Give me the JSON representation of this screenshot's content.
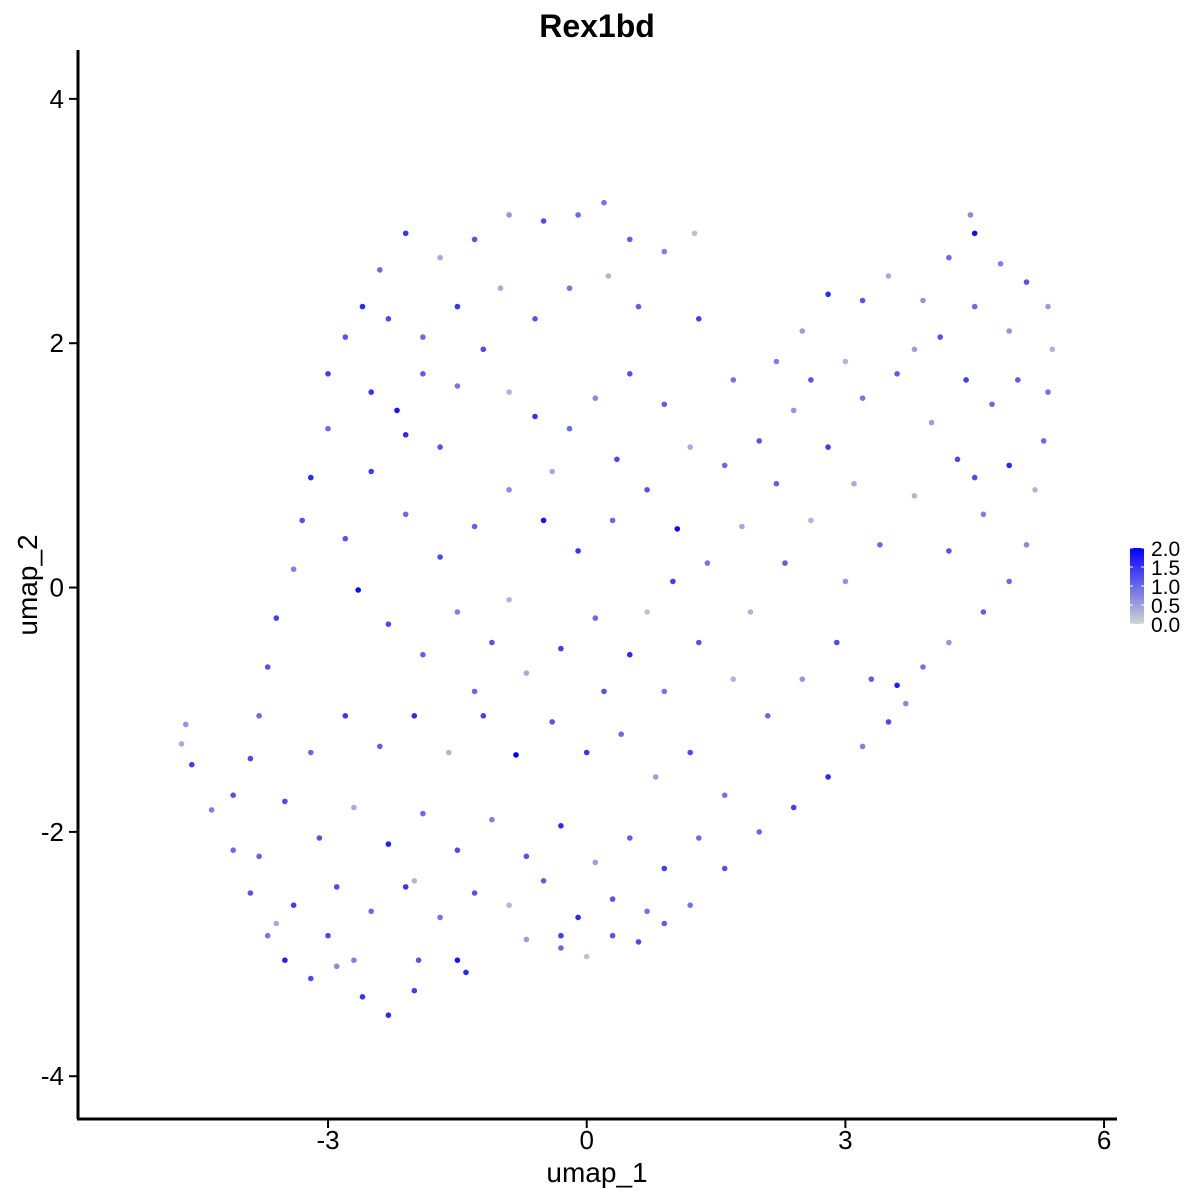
{
  "chart_data": {
    "type": "scatter",
    "title": "Rex1bd",
    "xlabel": "umap_1",
    "ylabel": "umap_2",
    "xlim": [
      -5.9,
      6.15
    ],
    "ylim": [
      -4.35,
      4.4
    ],
    "x_ticks": [
      -3,
      0,
      3,
      6
    ],
    "y_ticks": [
      -4,
      -2,
      0,
      2,
      4
    ],
    "x_tick_labels": [
      "-3",
      "0",
      "3",
      "6"
    ],
    "y_tick_labels": [
      "-4",
      "-2",
      "0",
      "2",
      "4"
    ],
    "grid": false,
    "legend": {
      "position": "right",
      "type": "colorbar",
      "range": [
        0,
        2
      ],
      "breaks": [
        2.0,
        1.5,
        1.0,
        0.5,
        0.0
      ],
      "labels": [
        "2.0",
        "1.5",
        "1.0",
        "0.5",
        "0.0"
      ],
      "low_color": "#d3d3d3",
      "high_color": "#0000ff"
    },
    "point_color_scale": {
      "low": "#d3d3d3",
      "high": "#0000ff"
    },
    "points": [
      {
        "x": -4.65,
        "y": -1.12,
        "v": 0.6
      },
      {
        "x": -4.58,
        "y": -1.45,
        "v": 1.4
      },
      {
        "x": -4.7,
        "y": -1.28,
        "v": 0.4
      },
      {
        "x": -4.35,
        "y": -1.82,
        "v": 0.8
      },
      {
        "x": -4.1,
        "y": -2.15,
        "v": 1.0
      },
      {
        "x": -3.9,
        "y": -2.5,
        "v": 1.2
      },
      {
        "x": -3.7,
        "y": -2.85,
        "v": 0.9
      },
      {
        "x": -3.5,
        "y": -3.05,
        "v": 1.7
      },
      {
        "x": -3.2,
        "y": -3.2,
        "v": 1.3
      },
      {
        "x": -2.9,
        "y": -3.1,
        "v": 0.7
      },
      {
        "x": -2.6,
        "y": -3.35,
        "v": 1.5
      },
      {
        "x": -2.3,
        "y": -3.5,
        "v": 1.6
      },
      {
        "x": -2.0,
        "y": -3.3,
        "v": 1.4
      },
      {
        "x": -1.4,
        "y": -3.15,
        "v": 1.6
      },
      {
        "x": -1.5,
        "y": -3.05,
        "v": 1.8
      },
      {
        "x": -0.7,
        "y": -2.88,
        "v": 0.5
      },
      {
        "x": -0.3,
        "y": -2.95,
        "v": 1.0
      },
      {
        "x": 0.0,
        "y": -3.02,
        "v": 0.2
      },
      {
        "x": 0.3,
        "y": -2.85,
        "v": 1.2
      },
      {
        "x": 0.6,
        "y": -2.9,
        "v": 1.3
      },
      {
        "x": 0.9,
        "y": -2.75,
        "v": 1.1
      },
      {
        "x": 1.2,
        "y": -2.6,
        "v": 0.9
      },
      {
        "x": 1.6,
        "y": -2.3,
        "v": 1.2
      },
      {
        "x": 2.0,
        "y": -2.0,
        "v": 1.0
      },
      {
        "x": 2.4,
        "y": -1.8,
        "v": 1.4
      },
      {
        "x": 2.8,
        "y": -1.55,
        "v": 1.6
      },
      {
        "x": 3.2,
        "y": -1.3,
        "v": 0.8
      },
      {
        "x": 3.5,
        "y": -1.1,
        "v": 1.3
      },
      {
        "x": 3.6,
        "y": -0.8,
        "v": 1.7
      },
      {
        "x": 3.9,
        "y": -0.65,
        "v": 0.9
      },
      {
        "x": 4.2,
        "y": -0.45,
        "v": 0.6
      },
      {
        "x": 4.6,
        "y": -0.2,
        "v": 1.1
      },
      {
        "x": 4.9,
        "y": 0.05,
        "v": 1.0
      },
      {
        "x": 5.1,
        "y": 0.35,
        "v": 0.7
      },
      {
        "x": 5.2,
        "y": 0.8,
        "v": 0.3
      },
      {
        "x": 5.3,
        "y": 1.2,
        "v": 1.0
      },
      {
        "x": 5.35,
        "y": 1.6,
        "v": 0.9
      },
      {
        "x": 5.4,
        "y": 1.95,
        "v": 0.3
      },
      {
        "x": 5.35,
        "y": 2.3,
        "v": 0.5
      },
      {
        "x": 5.1,
        "y": 2.5,
        "v": 1.2
      },
      {
        "x": 4.8,
        "y": 2.65,
        "v": 0.8
      },
      {
        "x": 4.5,
        "y": 2.9,
        "v": 1.9
      },
      {
        "x": 4.45,
        "y": 3.05,
        "v": 0.7
      },
      {
        "x": 4.2,
        "y": 2.7,
        "v": 1.0
      },
      {
        "x": 3.9,
        "y": 2.35,
        "v": 0.6
      },
      {
        "x": 3.5,
        "y": 2.55,
        "v": 0.4
      },
      {
        "x": 3.2,
        "y": 2.35,
        "v": 1.2
      },
      {
        "x": 2.8,
        "y": 2.4,
        "v": 1.6
      },
      {
        "x": 2.5,
        "y": 2.1,
        "v": 0.5
      },
      {
        "x": 2.2,
        "y": 1.85,
        "v": 0.8
      },
      {
        "x": 1.7,
        "y": 1.7,
        "v": 0.9
      },
      {
        "x": 1.3,
        "y": 2.2,
        "v": 1.4
      },
      {
        "x": 1.25,
        "y": 2.9,
        "v": 0.2
      },
      {
        "x": 0.9,
        "y": 2.75,
        "v": 0.8
      },
      {
        "x": 0.5,
        "y": 2.85,
        "v": 1.1
      },
      {
        "x": 0.2,
        "y": 3.15,
        "v": 0.9
      },
      {
        "x": -0.1,
        "y": 3.05,
        "v": 1.0
      },
      {
        "x": -0.5,
        "y": 3.0,
        "v": 1.3
      },
      {
        "x": -0.9,
        "y": 3.05,
        "v": 0.6
      },
      {
        "x": -1.3,
        "y": 2.85,
        "v": 1.2
      },
      {
        "x": -1.7,
        "y": 2.7,
        "v": 0.4
      },
      {
        "x": -2.1,
        "y": 2.9,
        "v": 1.5
      },
      {
        "x": -2.4,
        "y": 2.6,
        "v": 1.0
      },
      {
        "x": -2.6,
        "y": 2.3,
        "v": 1.6
      },
      {
        "x": -2.8,
        "y": 2.05,
        "v": 1.2
      },
      {
        "x": -3.0,
        "y": 1.75,
        "v": 1.4
      },
      {
        "x": -3.0,
        "y": 1.3,
        "v": 1.0
      },
      {
        "x": -3.2,
        "y": 0.9,
        "v": 1.6
      },
      {
        "x": -3.3,
        "y": 0.55,
        "v": 1.2
      },
      {
        "x": -3.4,
        "y": 0.15,
        "v": 0.8
      },
      {
        "x": -3.6,
        "y": -0.25,
        "v": 1.4
      },
      {
        "x": -3.7,
        "y": -0.65,
        "v": 1.2
      },
      {
        "x": -3.8,
        "y": -1.05,
        "v": 1.0
      },
      {
        "x": -3.9,
        "y": -1.4,
        "v": 1.3
      },
      {
        "x": -4.1,
        "y": -1.7,
        "v": 1.2
      },
      {
        "x": -2.5,
        "y": 1.6,
        "v": 1.5
      },
      {
        "x": -2.2,
        "y": 1.45,
        "v": 1.8
      },
      {
        "x": -1.9,
        "y": 1.75,
        "v": 1.1
      },
      {
        "x": -1.5,
        "y": 1.65,
        "v": 0.9
      },
      {
        "x": -1.2,
        "y": 1.95,
        "v": 1.3
      },
      {
        "x": -0.9,
        "y": 1.6,
        "v": 0.3
      },
      {
        "x": -0.6,
        "y": 1.4,
        "v": 1.5
      },
      {
        "x": -0.2,
        "y": 1.3,
        "v": 1.0
      },
      {
        "x": 0.1,
        "y": 1.55,
        "v": 0.7
      },
      {
        "x": 0.5,
        "y": 1.75,
        "v": 1.2
      },
      {
        "x": 0.9,
        "y": 1.5,
        "v": 1.1
      },
      {
        "x": 1.2,
        "y": 1.15,
        "v": 0.4
      },
      {
        "x": 1.6,
        "y": 1.0,
        "v": 1.0
      },
      {
        "x": 2.0,
        "y": 1.2,
        "v": 1.2
      },
      {
        "x": 2.4,
        "y": 1.45,
        "v": 0.6
      },
      {
        "x": 2.8,
        "y": 1.15,
        "v": 1.4
      },
      {
        "x": 3.2,
        "y": 1.55,
        "v": 0.9
      },
      {
        "x": 3.6,
        "y": 1.75,
        "v": 1.1
      },
      {
        "x": 4.0,
        "y": 1.35,
        "v": 0.5
      },
      {
        "x": 4.3,
        "y": 1.05,
        "v": 1.3
      },
      {
        "x": 4.7,
        "y": 1.5,
        "v": 1.0
      },
      {
        "x": 4.9,
        "y": 1.0,
        "v": 1.6
      },
      {
        "x": 4.6,
        "y": 0.6,
        "v": 0.8
      },
      {
        "x": 4.2,
        "y": 0.3,
        "v": 1.2
      },
      {
        "x": 3.8,
        "y": 0.75,
        "v": 0.3
      },
      {
        "x": 3.4,
        "y": 0.35,
        "v": 1.0
      },
      {
        "x": 3.0,
        "y": 0.05,
        "v": 0.6
      },
      {
        "x": 2.6,
        "y": 0.55,
        "v": 0.3
      },
      {
        "x": 2.2,
        "y": 0.85,
        "v": 1.1
      },
      {
        "x": 1.8,
        "y": 0.5,
        "v": 0.4
      },
      {
        "x": 1.4,
        "y": 0.2,
        "v": 0.9
      },
      {
        "x": 1.05,
        "y": 0.48,
        "v": 1.9
      },
      {
        "x": 0.7,
        "y": 0.8,
        "v": 1.2
      },
      {
        "x": 0.3,
        "y": 0.55,
        "v": 1.0
      },
      {
        "x": -0.1,
        "y": 0.3,
        "v": 1.5
      },
      {
        "x": -0.5,
        "y": 0.55,
        "v": 1.8
      },
      {
        "x": -0.9,
        "y": 0.8,
        "v": 0.7
      },
      {
        "x": -1.3,
        "y": 0.5,
        "v": 1.1
      },
      {
        "x": -1.7,
        "y": 0.25,
        "v": 1.3
      },
      {
        "x": -2.1,
        "y": 0.6,
        "v": 1.0
      },
      {
        "x": -2.5,
        "y": 0.95,
        "v": 1.4
      },
      {
        "x": -2.8,
        "y": 0.4,
        "v": 1.2
      },
      {
        "x": -2.65,
        "y": -0.02,
        "v": 1.9
      },
      {
        "x": -2.3,
        "y": -0.3,
        "v": 1.3
      },
      {
        "x": -1.9,
        "y": -0.55,
        "v": 1.1
      },
      {
        "x": -1.5,
        "y": -0.2,
        "v": 0.8
      },
      {
        "x": -1.1,
        "y": -0.45,
        "v": 1.2
      },
      {
        "x": -0.7,
        "y": -0.7,
        "v": 0.4
      },
      {
        "x": -0.3,
        "y": -0.5,
        "v": 1.4
      },
      {
        "x": 0.1,
        "y": -0.25,
        "v": 1.0
      },
      {
        "x": 0.5,
        "y": -0.55,
        "v": 1.6
      },
      {
        "x": 0.9,
        "y": -0.85,
        "v": 0.9
      },
      {
        "x": 1.3,
        "y": -0.45,
        "v": 1.2
      },
      {
        "x": 1.7,
        "y": -0.75,
        "v": 0.3
      },
      {
        "x": 2.1,
        "y": -1.05,
        "v": 1.0
      },
      {
        "x": 2.5,
        "y": -0.75,
        "v": 0.6
      },
      {
        "x": 2.9,
        "y": -0.45,
        "v": 1.3
      },
      {
        "x": 3.3,
        "y": -0.75,
        "v": 1.1
      },
      {
        "x": 3.7,
        "y": -0.95,
        "v": 0.7
      },
      {
        "x": -0.82,
        "y": -1.37,
        "v": 2.0
      },
      {
        "x": -0.4,
        "y": -1.1,
        "v": 1.2
      },
      {
        "x": 0.0,
        "y": -1.35,
        "v": 1.5
      },
      {
        "x": 0.4,
        "y": -1.2,
        "v": 1.0
      },
      {
        "x": 0.8,
        "y": -1.55,
        "v": 0.5
      },
      {
        "x": 1.2,
        "y": -1.35,
        "v": 1.3
      },
      {
        "x": 1.6,
        "y": -1.7,
        "v": 0.9
      },
      {
        "x": -1.2,
        "y": -1.05,
        "v": 1.4
      },
      {
        "x": -1.6,
        "y": -1.35,
        "v": 0.3
      },
      {
        "x": -2.0,
        "y": -1.05,
        "v": 1.6
      },
      {
        "x": -2.4,
        "y": -1.3,
        "v": 1.1
      },
      {
        "x": -2.8,
        "y": -1.05,
        "v": 1.5
      },
      {
        "x": -3.2,
        "y": -1.35,
        "v": 1.0
      },
      {
        "x": -3.5,
        "y": -1.75,
        "v": 1.3
      },
      {
        "x": -3.1,
        "y": -2.05,
        "v": 1.2
      },
      {
        "x": -2.7,
        "y": -1.8,
        "v": 0.4
      },
      {
        "x": -2.3,
        "y": -2.1,
        "v": 1.7
      },
      {
        "x": -1.9,
        "y": -1.85,
        "v": 1.0
      },
      {
        "x": -1.5,
        "y": -2.15,
        "v": 1.3
      },
      {
        "x": -1.1,
        "y": -1.9,
        "v": 0.8
      },
      {
        "x": -0.7,
        "y": -2.2,
        "v": 1.2
      },
      {
        "x": -0.3,
        "y": -1.95,
        "v": 1.6
      },
      {
        "x": 0.1,
        "y": -2.25,
        "v": 0.5
      },
      {
        "x": 0.5,
        "y": -2.05,
        "v": 1.1
      },
      {
        "x": 0.9,
        "y": -2.3,
        "v": 1.4
      },
      {
        "x": 1.3,
        "y": -2.05,
        "v": 1.0
      },
      {
        "x": -2.9,
        "y": -2.45,
        "v": 1.3
      },
      {
        "x": -2.5,
        "y": -2.65,
        "v": 1.0
      },
      {
        "x": -2.1,
        "y": -2.45,
        "v": 1.5
      },
      {
        "x": -1.7,
        "y": -2.7,
        "v": 0.9
      },
      {
        "x": -1.3,
        "y": -2.5,
        "v": 1.2
      },
      {
        "x": -0.9,
        "y": -2.6,
        "v": 0.3
      },
      {
        "x": -0.5,
        "y": -2.4,
        "v": 1.1
      },
      {
        "x": -0.1,
        "y": -2.7,
        "v": 1.6
      },
      {
        "x": 0.3,
        "y": -2.55,
        "v": 1.2
      },
      {
        "x": 0.7,
        "y": -2.65,
        "v": 0.9
      },
      {
        "x": -3.4,
        "y": -2.6,
        "v": 1.4
      },
      {
        "x": -3.8,
        "y": -2.2,
        "v": 1.1
      },
      {
        "x": -3.6,
        "y": -2.75,
        "v": 0.4
      },
      {
        "x": -3.0,
        "y": -2.85,
        "v": 1.3
      },
      {
        "x": -2.7,
        "y": -3.05,
        "v": 0.8
      },
      {
        "x": -1.95,
        "y": -3.05,
        "v": 1.2
      },
      {
        "x": -1.0,
        "y": 2.45,
        "v": 0.4
      },
      {
        "x": -0.6,
        "y": 2.2,
        "v": 1.2
      },
      {
        "x": -0.2,
        "y": 2.45,
        "v": 0.9
      },
      {
        "x": 0.25,
        "y": 2.55,
        "v": 0.3
      },
      {
        "x": 0.6,
        "y": 2.3,
        "v": 1.1
      },
      {
        "x": -1.5,
        "y": 2.3,
        "v": 1.5
      },
      {
        "x": -1.9,
        "y": 2.05,
        "v": 1.0
      },
      {
        "x": -2.3,
        "y": 2.2,
        "v": 1.3
      },
      {
        "x": 4.1,
        "y": 2.05,
        "v": 1.2
      },
      {
        "x": 4.5,
        "y": 2.3,
        "v": 1.0
      },
      {
        "x": 4.9,
        "y": 2.1,
        "v": 0.6
      },
      {
        "x": 3.8,
        "y": 1.95,
        "v": 0.5
      },
      {
        "x": 3.0,
        "y": 1.85,
        "v": 0.3
      },
      {
        "x": 2.6,
        "y": 1.7,
        "v": 1.2
      },
      {
        "x": 4.4,
        "y": 1.7,
        "v": 1.4
      },
      {
        "x": 5.0,
        "y": 1.7,
        "v": 1.1
      },
      {
        "x": 0.35,
        "y": 1.05,
        "v": 1.3
      },
      {
        "x": -0.4,
        "y": 0.95,
        "v": 0.4
      },
      {
        "x": -1.7,
        "y": 1.15,
        "v": 1.2
      },
      {
        "x": -2.1,
        "y": 1.25,
        "v": 1.6
      },
      {
        "x": 1.9,
        "y": -0.2,
        "v": 0.3
      },
      {
        "x": 2.3,
        "y": 0.2,
        "v": 1.1
      },
      {
        "x": 3.1,
        "y": 0.85,
        "v": 0.4
      },
      {
        "x": 4.5,
        "y": 0.9,
        "v": 1.3
      },
      {
        "x": 0.7,
        "y": -0.2,
        "v": 0.2
      },
      {
        "x": -0.9,
        "y": -0.1,
        "v": 0.3
      },
      {
        "x": -1.3,
        "y": -0.85,
        "v": 1.0
      },
      {
        "x": 0.2,
        "y": -0.85,
        "v": 1.2
      },
      {
        "x": 1.0,
        "y": 0.05,
        "v": 1.4
      },
      {
        "x": -2.0,
        "y": -2.4,
        "v": 0.3
      },
      {
        "x": -0.3,
        "y": -2.85,
        "v": 1.4
      }
    ]
  }
}
